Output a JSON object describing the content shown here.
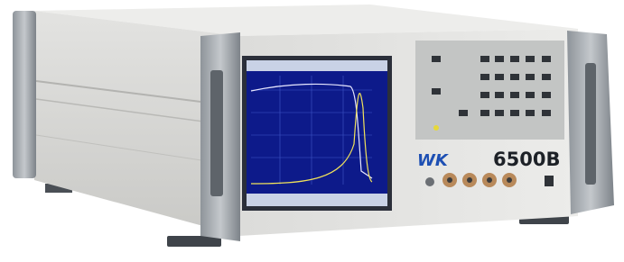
{
  "brand": "WK",
  "model": "6500B"
}
